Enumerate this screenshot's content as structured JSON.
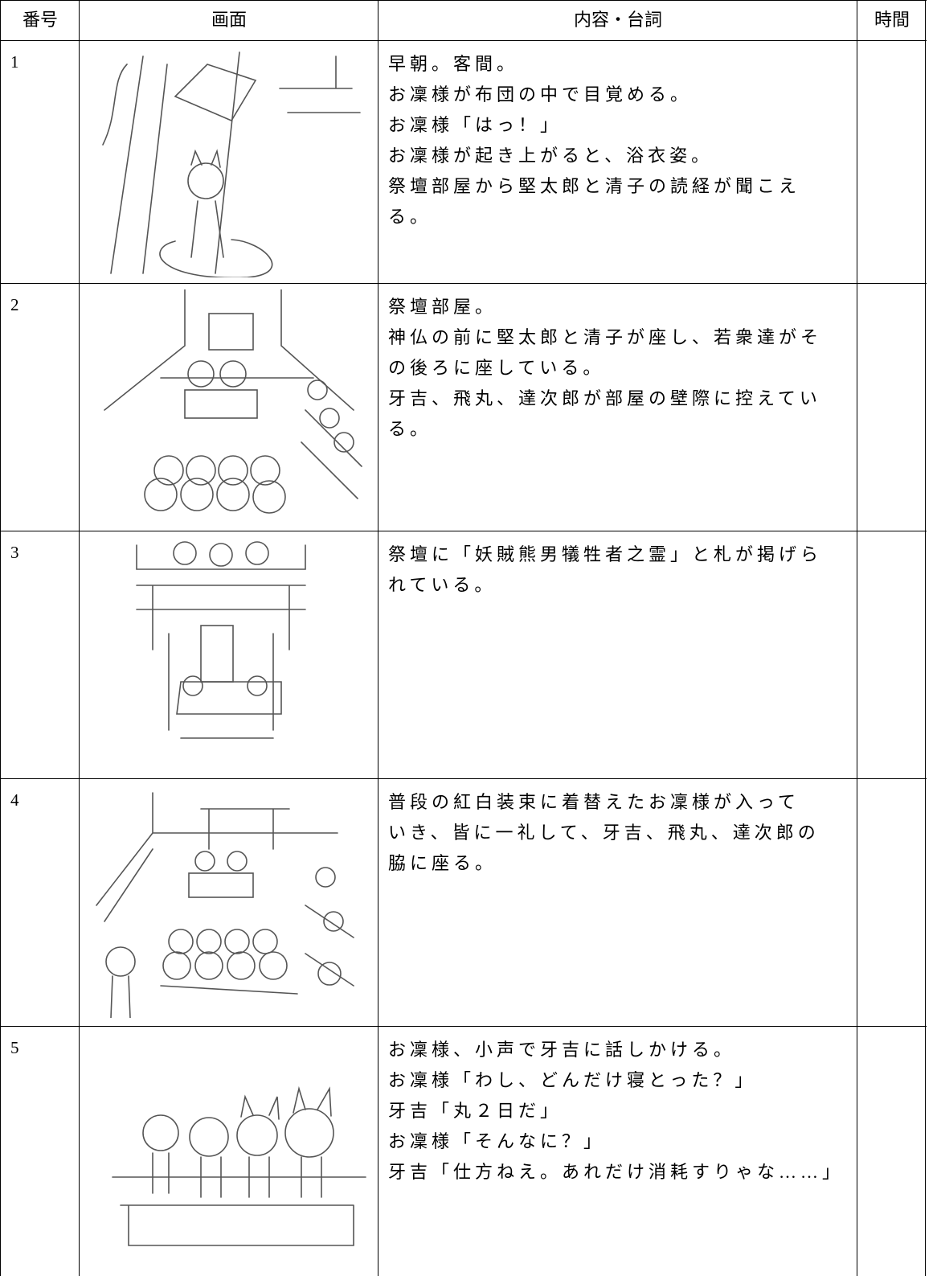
{
  "table": {
    "header": [
      "番号",
      "画面",
      "内容・台詞",
      "時間"
    ],
    "rows": [
      {
        "number": "1",
        "lines": [
          "早朝。客間。",
          "お凜様が布団の中で目覚める。",
          "お凜様「はっ！」",
          "お凜様が起き上がると、浴衣姿。",
          "祭壇部屋から堅太郎と清子の読経が聞こえ",
          "る。"
        ]
      },
      {
        "number": "2",
        "lines": [
          "祭壇部屋。",
          "神仏の前に堅太郎と清子が座し、若衆達がそ",
          "の後ろに座している。",
          "牙吉、飛丸、達次郎が部屋の壁際に控えてい",
          "る。"
        ]
      },
      {
        "number": "3",
        "lines": [
          "祭壇に「妖賊熊男犠牲者之霊」と札が掲げら",
          "れている。"
        ]
      },
      {
        "number": "4",
        "lines": [
          "普段の紅白装束に着替えたお凜様が入って",
          "いき、皆に一礼して、牙吉、飛丸、達次郎の",
          "脇に座る。"
        ]
      },
      {
        "number": "5",
        "lines": [
          "お凜様、小声で牙吉に話しかける。",
          "お凜様「わし、どんだけ寝とった？」",
          "牙吉「丸２日だ」",
          "お凜様「そんなに？」",
          "牙吉「仕方ねえ。あれだけ消耗すりゃな……」"
        ]
      }
    ]
  }
}
